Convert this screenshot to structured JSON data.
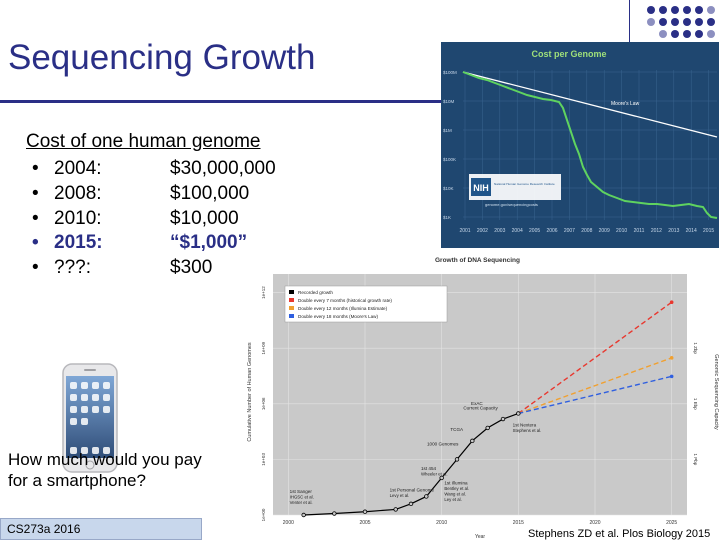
{
  "slide": {
    "title": "Sequencing Growth",
    "subtitle": "Cost of one human genome",
    "bullet_glyph": "•",
    "rows": [
      {
        "year": "2004:",
        "cost": "$30,000,000",
        "highlight": false
      },
      {
        "year": "2008:",
        "cost": "$100,000",
        "highlight": false
      },
      {
        "year": "2010:",
        "cost": "$10,000",
        "highlight": false
      },
      {
        "year": "2015:",
        "cost": "“$1,000”",
        "highlight": true
      },
      {
        "year": "???:",
        "cost": "$300",
        "highlight": false
      }
    ],
    "question": "How much would you pay for a smartphone?",
    "course_tag": "CS273a 2016",
    "citation": "Stephens ZD et al. Plos Biology 2015",
    "colors": {
      "accent": "#2a2f86",
      "footer_bg": "#c8d7ec"
    }
  },
  "nih_chart": {
    "title": "Cost per Genome",
    "y_ticks": [
      "$100M",
      "$10M",
      "$1M",
      "$100K",
      "$10K",
      "$1K"
    ],
    "x_ticks": [
      "2001",
      "2002",
      "2003",
      "2004",
      "2005",
      "2006",
      "2007",
      "2008",
      "2009",
      "2010",
      "2011",
      "2012",
      "2013",
      "2014",
      "2015"
    ],
    "moore_label": "Moore's Law",
    "logo_text": "NIH",
    "logo_caption": "National Human Genome Research Institute",
    "logo_url": "genome.gov/sequencingcosts",
    "colors": {
      "bg": "#1f4770",
      "data": "#5fd35f",
      "moore": "#ffffff"
    }
  },
  "chart_data": {
    "type": "line",
    "title": "Growth of DNA Sequencing",
    "xlabel": "Year",
    "ylabel": "Cumulative Number of Human Genomes",
    "ylabel_right": "Genomic Sequencing Capacity",
    "log_y": true,
    "x_ticks": [
      2000,
      2005,
      2010,
      2015,
      2020,
      2025
    ],
    "xlim": [
      1999,
      2026
    ],
    "ylim": [
      1,
      10000000000000.0
    ],
    "y_ticks": [
      {
        "v": 1,
        "label": "1e+00"
      },
      {
        "v": 1000.0,
        "label": "1e+03"
      },
      {
        "v": 1000000.0,
        "label": "1e+06"
      },
      {
        "v": 1000000000.0,
        "label": "1e+09"
      },
      {
        "v": 1000000000000.0,
        "label": "1e+12"
      }
    ],
    "y_ticks_right": [
      {
        "v": 1000.0,
        "label": "1 Pbp"
      },
      {
        "v": 1000000.0,
        "label": "1 Ebp"
      },
      {
        "v": 1000000000.0,
        "label": "1 Zbp"
      }
    ],
    "legend": [
      {
        "name": "Recorded growth",
        "color": "#000000"
      },
      {
        "name": "Double every 7 months (historical growth rate)",
        "color": "#e8382f"
      },
      {
        "name": "Double every 12 months (Illumina Estimate)",
        "color": "#f0a030"
      },
      {
        "name": "Double every 18 months (Moore's Law)",
        "color": "#2f5fe0"
      }
    ],
    "series": [
      {
        "name": "Recorded growth",
        "x": [
          2001,
          2003,
          2005,
          2007,
          2008,
          2009,
          2010,
          2011,
          2012,
          2013,
          2014,
          2015
        ],
        "y": [
          1,
          1.2,
          1.5,
          2,
          4,
          10,
          100,
          1000,
          10000,
          50000,
          150000,
          300000
        ]
      },
      {
        "name": "Double every 7 months (historical growth rate)",
        "x": [
          2015,
          2025
        ],
        "y": [
          300000,
          300000000000
        ]
      },
      {
        "name": "Double every 12 months (Illumina Estimate)",
        "x": [
          2015,
          2025
        ],
        "y": [
          300000,
          300000000
        ]
      },
      {
        "name": "Double every 18 months (Moore's Law)",
        "x": [
          2015,
          2025
        ],
        "y": [
          300000,
          30000000
        ]
      }
    ],
    "annotations": [
      {
        "text": "1st Sanger",
        "sub": "IHGSC et al.\nVenter et al.",
        "x": 2001,
        "y": 1
      },
      {
        "text": "1st Personal Genome",
        "sub": "Levy et al.",
        "x": 2007,
        "y": 2
      },
      {
        "text": "1st 454",
        "sub": "Wheeler et al.",
        "x": 2008,
        "y": 4
      },
      {
        "text": "1st Illumina",
        "sub": "Bentley et al.\nWang et al.\nLey et al.",
        "x": 2009,
        "y": 10
      },
      {
        "text": "1000 Genomes",
        "sub": "",
        "x": 2011,
        "y": 1000
      },
      {
        "text": "TCGA",
        "sub": "",
        "x": 2012,
        "y": 10000
      },
      {
        "text": "ExAC",
        "sub": "",
        "x": 2014,
        "y": 150000
      },
      {
        "text": "1st Nextera",
        "sub": "Stephens et al.",
        "x": 2014.5,
        "y": 200000
      },
      {
        "text": "Current Capacity",
        "sub": "",
        "x": 2015,
        "y": 300000
      }
    ]
  }
}
